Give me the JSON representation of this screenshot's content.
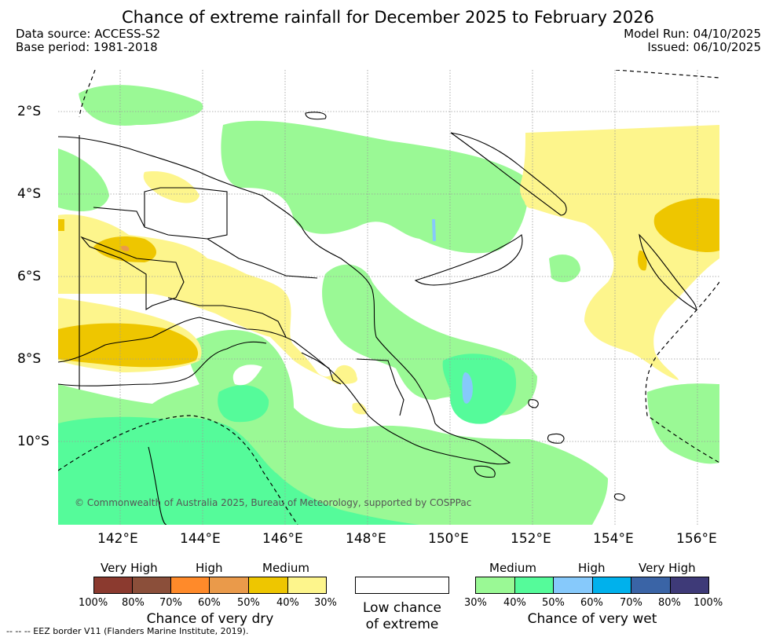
{
  "title": "Chance of extreme rainfall for December 2025 to February 2026",
  "data_source": "Data source: ACCESS-S2",
  "base_period": "Base period: 1981-2018",
  "model_run": "Model Run: 04/10/2025",
  "issued": "Issued: 06/10/2025",
  "lat_labels": [
    "2°S",
    "4°S",
    "6°S",
    "8°S",
    "10°S"
  ],
  "lon_labels": [
    "142°E",
    "144°E",
    "146°E",
    "148°E",
    "150°E",
    "152°E",
    "154°E",
    "156°E"
  ],
  "copyright": "© Commonwealth of Australia 2025, Bureau of Meteorology, supported by COSPPac",
  "legend": {
    "dry": {
      "categories": [
        "Very High",
        "High",
        "Medium"
      ],
      "percents": [
        "100%",
        "80%",
        "70%",
        "60%",
        "50%",
        "40%",
        "30%"
      ],
      "colors": [
        "#8b3a2f",
        "#8b4f3a",
        "#ff8a2a",
        "#ea9a4a",
        "#eec600",
        "#fdf58c"
      ],
      "title": "Chance of very dry"
    },
    "neutral": {
      "line1": "Low chance",
      "line2": "of extreme"
    },
    "wet": {
      "categories": [
        "Medium",
        "High",
        "Very High"
      ],
      "percents": [
        "30%",
        "40%",
        "50%",
        "60%",
        "70%",
        "80%",
        "100%"
      ],
      "colors": [
        "#9af995",
        "#55fb9a",
        "#86c9fb",
        "#00b1ec",
        "#3a64a6",
        "#3e3a78"
      ],
      "title": "Chance of very wet"
    }
  },
  "footer": "--  --  -- EEZ border V11 (Flanders Marine Institute, 2019)."
}
